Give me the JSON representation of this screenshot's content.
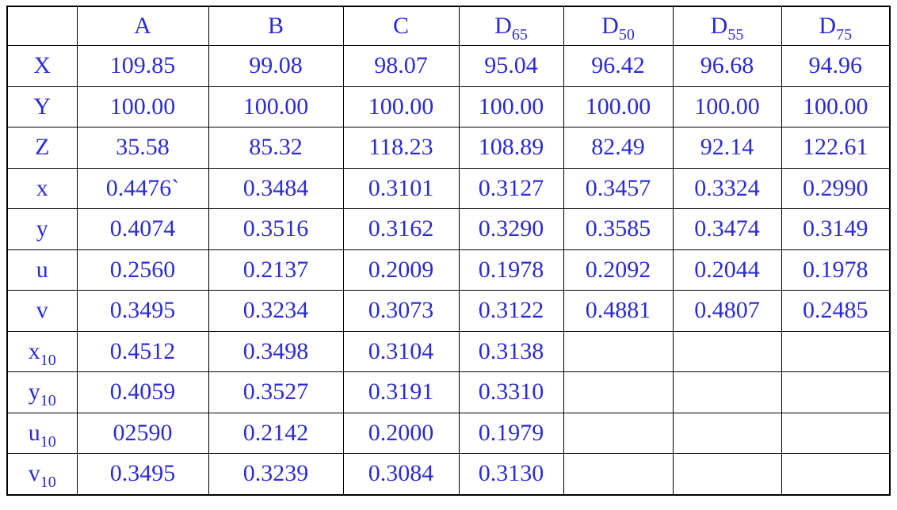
{
  "table": {
    "columns": [
      {
        "text": "A"
      },
      {
        "text": "B"
      },
      {
        "text": "C"
      },
      {
        "text": "D",
        "sub": "65"
      },
      {
        "text": "D",
        "sub": "50"
      },
      {
        "text": "D",
        "sub": "55"
      },
      {
        "text": "D",
        "sub": "75"
      }
    ],
    "rows": [
      {
        "label": {
          "text": "X"
        },
        "cells": [
          "109.85",
          "99.08",
          "98.07",
          "95.04",
          "96.42",
          "96.68",
          "94.96"
        ]
      },
      {
        "label": {
          "text": "Y"
        },
        "cells": [
          "100.00",
          "100.00",
          "100.00",
          "100.00",
          "100.00",
          "100.00",
          "100.00"
        ]
      },
      {
        "label": {
          "text": "Z"
        },
        "cells": [
          "35.58",
          "85.32",
          "118.23",
          "108.89",
          "82.49",
          "92.14",
          "122.61"
        ]
      },
      {
        "label": {
          "text": "x"
        },
        "cells": [
          "0.4476`",
          "0.3484",
          "0.3101",
          "0.3127",
          "0.3457",
          "0.3324",
          "0.2990"
        ]
      },
      {
        "label": {
          "text": "y"
        },
        "cells": [
          "0.4074",
          "0.3516",
          "0.3162",
          "0.3290",
          "0.3585",
          "0.3474",
          "0.3149"
        ]
      },
      {
        "label": {
          "text": "u"
        },
        "cells": [
          "0.2560",
          "0.2137",
          "0.2009",
          "0.1978",
          "0.2092",
          "0.2044",
          "0.1978"
        ]
      },
      {
        "label": {
          "text": "v"
        },
        "cells": [
          "0.3495",
          "0.3234",
          "0.3073",
          "0.3122",
          "0.4881",
          "0.4807",
          "0.2485"
        ]
      },
      {
        "label": {
          "text": "x",
          "sub": "10"
        },
        "cells": [
          "0.4512",
          "0.3498",
          "0.3104",
          "0.3138"
        ]
      },
      {
        "label": {
          "text": "y",
          "sub": "10"
        },
        "cells": [
          "0.4059",
          "0.3527",
          "0.3191",
          "0.3310"
        ]
      },
      {
        "label": {
          "text": "u",
          "sub": "10"
        },
        "cells": [
          "02590",
          "0.2142",
          "0.2000",
          "0.1979"
        ]
      },
      {
        "label": {
          "text": "v",
          "sub": "10"
        },
        "cells": [
          "0.3495",
          "0.3239",
          "0.3084",
          "0.3130"
        ]
      }
    ]
  }
}
